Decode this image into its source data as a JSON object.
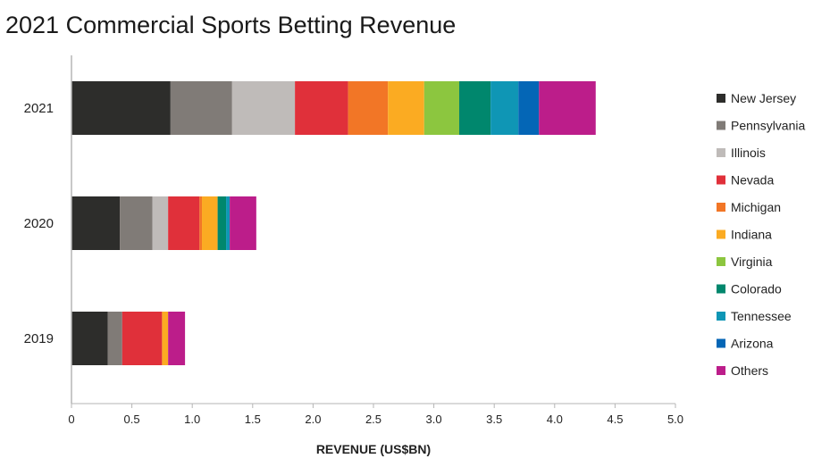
{
  "chart_data": {
    "type": "bar",
    "orientation": "horizontal",
    "stacked": true,
    "title": "2021 Commercial Sports Betting Revenue",
    "xlabel": "REVENUE (US$BN)",
    "ylabel": "",
    "xlim": [
      0,
      5.0
    ],
    "xticks": [
      "0",
      "0.5",
      "1.0",
      "1.5",
      "2.0",
      "2.5",
      "3.0",
      "3.5",
      "4.0",
      "4.5",
      "5.0"
    ],
    "grid": false,
    "legend_position": "right",
    "categories": [
      "2021",
      "2020",
      "2019"
    ],
    "series": [
      {
        "name": "New Jersey",
        "color": "#2d2d2b",
        "values": [
          0.82,
          0.4,
          0.3
        ]
      },
      {
        "name": "Pennsylvania",
        "color": "#807b77",
        "values": [
          0.51,
          0.27,
          0.12
        ]
      },
      {
        "name": "Illinois",
        "color": "#bfbbb9",
        "values": [
          0.52,
          0.13,
          0.0
        ]
      },
      {
        "name": "Nevada",
        "color": "#e0303a",
        "values": [
          0.44,
          0.26,
          0.33
        ]
      },
      {
        "name": "Michigan",
        "color": "#f27626",
        "values": [
          0.33,
          0.02,
          0.0
        ]
      },
      {
        "name": "Indiana",
        "color": "#fbab22",
        "values": [
          0.3,
          0.13,
          0.05
        ]
      },
      {
        "name": "Virginia",
        "color": "#8cc63f",
        "values": [
          0.29,
          0.0,
          0.0
        ]
      },
      {
        "name": "Colorado",
        "color": "#00876d",
        "values": [
          0.26,
          0.07,
          0.0
        ]
      },
      {
        "name": "Tennessee",
        "color": "#0f96b5",
        "values": [
          0.23,
          0.03,
          0.0
        ]
      },
      {
        "name": "Arizona",
        "color": "#0466b6",
        "values": [
          0.17,
          0.0,
          0.0
        ]
      },
      {
        "name": "Others",
        "color": "#bc1d8a",
        "values": [
          0.47,
          0.22,
          0.14
        ]
      }
    ]
  }
}
